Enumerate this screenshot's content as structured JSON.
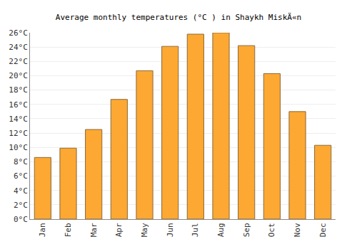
{
  "chart_data": {
    "type": "bar",
    "title": "Average monthly temperatures (°C ) in Shaykh MiskÄ«n",
    "categories": [
      "Jan",
      "Feb",
      "Mar",
      "Apr",
      "May",
      "Jun",
      "Jul",
      "Aug",
      "Sep",
      "Oct",
      "Nov",
      "Dec"
    ],
    "values": [
      8.6,
      9.9,
      12.5,
      16.7,
      20.7,
      24.1,
      25.8,
      26.0,
      24.2,
      20.3,
      15.0,
      10.3
    ],
    "color": "#fca832",
    "ylim": [
      0,
      26
    ],
    "yticks": [
      {
        "value": 0,
        "label": "0°C"
      },
      {
        "value": 2,
        "label": "2°C"
      },
      {
        "value": 4,
        "label": "4°C"
      },
      {
        "value": 6,
        "label": "6°C"
      },
      {
        "value": 8,
        "label": "8°C"
      },
      {
        "value": 10,
        "label": "10°C"
      },
      {
        "value": 12,
        "label": "12°C"
      },
      {
        "value": 14,
        "label": "14°C"
      },
      {
        "value": 16,
        "label": "16°C"
      },
      {
        "value": 18,
        "label": "18°C"
      },
      {
        "value": 20,
        "label": "20°C"
      },
      {
        "value": 22,
        "label": "22°C"
      },
      {
        "value": 24,
        "label": "24°C"
      },
      {
        "value": 26,
        "label": "26°C"
      }
    ],
    "grid": true
  }
}
